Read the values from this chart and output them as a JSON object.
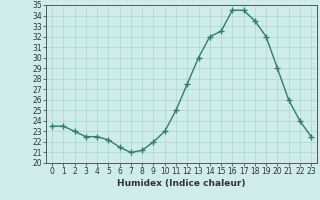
{
  "x": [
    0,
    1,
    2,
    3,
    4,
    5,
    6,
    7,
    8,
    9,
    10,
    11,
    12,
    13,
    14,
    15,
    16,
    17,
    18,
    19,
    20,
    21,
    22,
    23
  ],
  "y": [
    23.5,
    23.5,
    23.0,
    22.5,
    22.5,
    22.2,
    21.5,
    21.0,
    21.2,
    22.0,
    23.0,
    25.0,
    27.5,
    30.0,
    32.0,
    32.5,
    34.5,
    34.5,
    33.5,
    32.0,
    29.0,
    26.0,
    24.0,
    22.5
  ],
  "xlabel": "Humidex (Indice chaleur)",
  "line_color": "#2e7d6e",
  "marker": "+",
  "markersize": 4,
  "linewidth": 1.0,
  "bg_color": "#ceecea",
  "grid_color": "#b0d4d0",
  "ylim": [
    20,
    35
  ],
  "xlim": [
    -0.5,
    23.5
  ],
  "yticks": [
    20,
    21,
    22,
    23,
    24,
    25,
    26,
    27,
    28,
    29,
    30,
    31,
    32,
    33,
    34,
    35
  ],
  "xticks": [
    0,
    1,
    2,
    3,
    4,
    5,
    6,
    7,
    8,
    9,
    10,
    11,
    12,
    13,
    14,
    15,
    16,
    17,
    18,
    19,
    20,
    21,
    22,
    23
  ],
  "tick_fontsize": 5.5,
  "xlabel_fontsize": 6.5
}
